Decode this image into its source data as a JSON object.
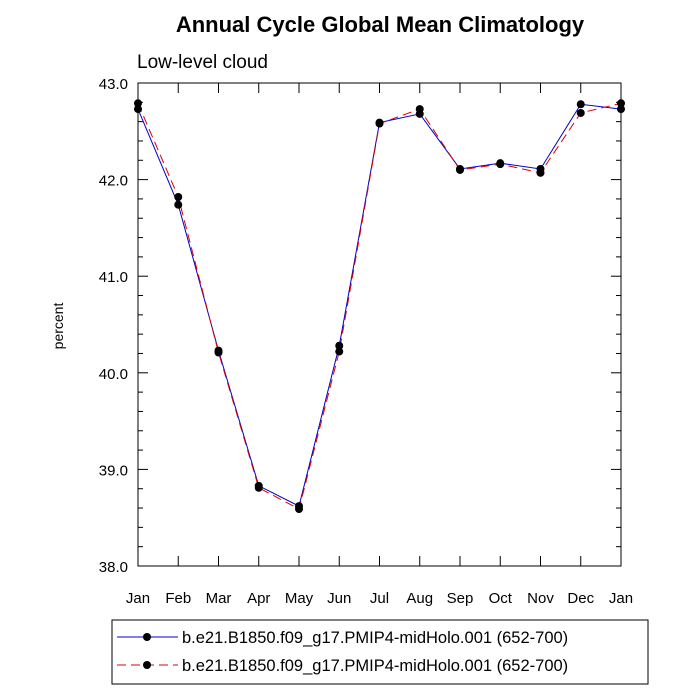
{
  "chart_data": {
    "type": "line",
    "title": "Annual Cycle Global Mean Climatology",
    "subtitle": "Low-level cloud",
    "xlabel": "",
    "ylabel": "percent",
    "categories": [
      "Jan",
      "Feb",
      "Mar",
      "Apr",
      "May",
      "Jun",
      "Jul",
      "Aug",
      "Sep",
      "Oct",
      "Nov",
      "Dec",
      "Jan"
    ],
    "ylim": [
      38.0,
      43.0
    ],
    "yticks": [
      "38.0",
      "39.0",
      "40.0",
      "41.0",
      "42.0",
      "43.0"
    ],
    "grid": false,
    "legend_position": "bottom",
    "series": [
      {
        "name": "b.e21.B1850.f09_g17.PMIP4-midHolo.001 (652-700)",
        "color": "#0000cc",
        "line_style": "solid",
        "marker": "filled-circle",
        "values": [
          42.73,
          41.74,
          40.23,
          38.83,
          38.62,
          40.28,
          42.59,
          42.68,
          42.11,
          42.17,
          42.11,
          42.78,
          42.73
        ]
      },
      {
        "name": "b.e21.B1850.f09_g17.PMIP4-midHolo.001 (652-700)",
        "color": "#dd0000",
        "line_style": "dashed",
        "marker": "filled-circle",
        "values": [
          42.79,
          41.82,
          40.21,
          38.81,
          38.59,
          40.22,
          42.58,
          42.73,
          42.1,
          42.16,
          42.07,
          42.69,
          42.79
        ]
      }
    ]
  }
}
